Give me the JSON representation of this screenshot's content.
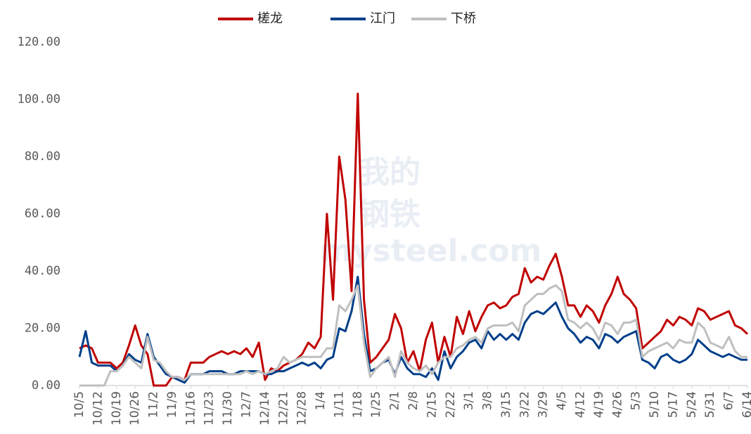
{
  "chart_data": {
    "type": "line",
    "watermark": [
      "我的",
      "钢铁",
      "mysteel.com"
    ],
    "categories": [
      "10/5",
      null,
      null,
      "10/12",
      null,
      null,
      "10/19",
      null,
      null,
      "10/26",
      null,
      null,
      "11/2",
      null,
      null,
      "11/9",
      null,
      null,
      "11/16",
      null,
      null,
      "11/23",
      null,
      null,
      "11/30",
      null,
      null,
      "12/7",
      null,
      null,
      "12/14",
      null,
      null,
      "12/21",
      null,
      null,
      "12/28",
      null,
      null,
      "1/4",
      null,
      null,
      "1/11",
      null,
      null,
      "1/18",
      null,
      null,
      "1/25",
      null,
      null,
      "2/1",
      null,
      null,
      "2/8",
      null,
      null,
      "2/15",
      null,
      null,
      "2/22",
      null,
      null,
      "3/1",
      null,
      null,
      "3/8",
      null,
      null,
      "3/15",
      null,
      null,
      "3/22",
      null,
      null,
      "3/29",
      null,
      null,
      "4/5",
      null,
      null,
      "4/12",
      null,
      null,
      "4/19",
      null,
      null,
      "4/26",
      null,
      null,
      "5/3",
      null,
      null,
      "5/10",
      null,
      null,
      "5/17",
      null,
      null,
      "5/24",
      null,
      null,
      "5/31",
      null,
      null,
      "6/7",
      null,
      null,
      "6/14"
    ],
    "series": [
      {
        "name": "槎龙",
        "color": "#c00000",
        "values": [
          13,
          14,
          13,
          8,
          8,
          8,
          6,
          8,
          14,
          21,
          14,
          11,
          0,
          0,
          0,
          3,
          3,
          2,
          8,
          8,
          8,
          10,
          11,
          12,
          11,
          12,
          11,
          13,
          10,
          15,
          2,
          6,
          5,
          7,
          8,
          9,
          11,
          15,
          13,
          17,
          60,
          30,
          80,
          65,
          33,
          102,
          30,
          8,
          10,
          13,
          16,
          25,
          20,
          8,
          12,
          5,
          16,
          22,
          8,
          17,
          10,
          24,
          18,
          26,
          19,
          24,
          28,
          29,
          27,
          28,
          31,
          32,
          41,
          36,
          38,
          37,
          42,
          46,
          38,
          28,
          28,
          24,
          28,
          26,
          22,
          28,
          32,
          38,
          32,
          30,
          27,
          13,
          15,
          17,
          19,
          23,
          21,
          24,
          23,
          21,
          27,
          26,
          23,
          24,
          25,
          26,
          21,
          20,
          18
        ]
      },
      {
        "name": "江门",
        "color": "#003f8a",
        "values": [
          10,
          19,
          8,
          7,
          7,
          7,
          5,
          7,
          11,
          9,
          8,
          18,
          10,
          7,
          4,
          3,
          2,
          1,
          4,
          4,
          4,
          5,
          5,
          5,
          4,
          4,
          5,
          5,
          5,
          5,
          4,
          4,
          5,
          5,
          6,
          7,
          8,
          7,
          8,
          6,
          9,
          10,
          20,
          19,
          26,
          38,
          18,
          5,
          6,
          8,
          9,
          4,
          10,
          6,
          4,
          4,
          3,
          6,
          2,
          12,
          6,
          10,
          12,
          15,
          16,
          13,
          19,
          16,
          18,
          16,
          18,
          16,
          22,
          25,
          26,
          25,
          27,
          29,
          24,
          20,
          18,
          15,
          17,
          16,
          13,
          18,
          17,
          15,
          17,
          18,
          19,
          9,
          8,
          6,
          10,
          11,
          9,
          8,
          9,
          11,
          16,
          14,
          12,
          11,
          10,
          11,
          10,
          9,
          9
        ]
      },
      {
        "name": "下桥",
        "color": "#bfbfbf",
        "values": [
          0,
          0,
          0,
          0,
          0,
          5,
          5,
          7,
          10,
          8,
          6,
          17,
          9,
          8,
          5,
          3,
          3,
          2,
          4,
          4,
          4,
          4,
          4,
          4,
          4,
          4,
          4,
          5,
          4,
          5,
          4,
          5,
          6,
          10,
          8,
          9,
          10,
          10,
          10,
          10,
          13,
          13,
          28,
          26,
          30,
          35,
          15,
          3,
          6,
          8,
          10,
          3,
          12,
          8,
          6,
          5,
          7,
          4,
          8,
          10,
          10,
          13,
          14,
          16,
          17,
          15,
          20,
          21,
          21,
          21,
          22,
          19,
          28,
          30,
          32,
          32,
          34,
          35,
          33,
          23,
          22,
          20,
          22,
          20,
          16,
          22,
          21,
          18,
          22,
          22,
          23,
          10,
          12,
          13,
          14,
          15,
          13,
          16,
          15,
          15,
          22,
          20,
          15,
          14,
          13,
          17,
          12,
          10,
          10
        ]
      }
    ],
    "ylim": [
      0,
      120
    ],
    "yticks": [
      {
        "value": 0,
        "label": "0.00"
      },
      {
        "value": 20,
        "label": "20.00"
      },
      {
        "value": 40,
        "label": "40.00"
      },
      {
        "value": 60,
        "label": "60.00"
      },
      {
        "value": 80,
        "label": "80.00"
      },
      {
        "value": 100,
        "label": "100.00"
      },
      {
        "value": 120,
        "label": "120.00"
      }
    ],
    "legend": "top"
  }
}
